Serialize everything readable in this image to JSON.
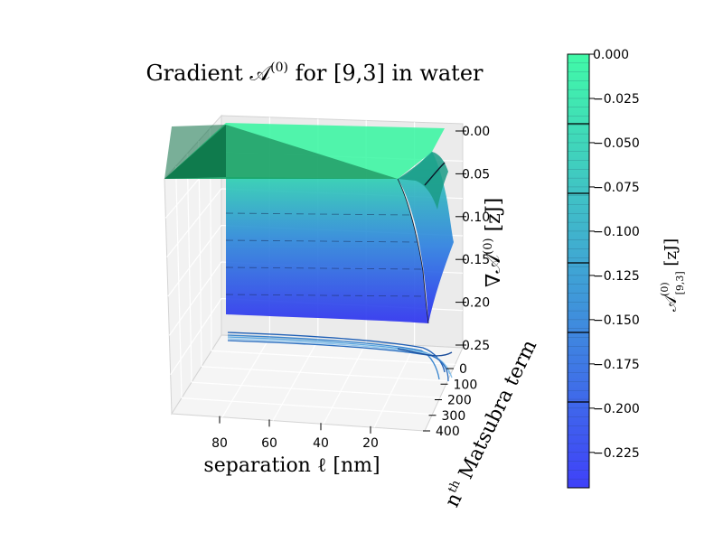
{
  "chart_data": {
    "type": "surface3d",
    "title": "Gradient 𝒜⁽⁰⁾  for [9,3] in water",
    "title_parts": {
      "main": "Gradient 𝒜",
      "sup": "(0)",
      "rest": "  for [9,3] in water"
    },
    "xlabel": {
      "main": "separation  ℓ  [nm]"
    },
    "ylabel": {
      "main": "n",
      "sup": "th",
      "rest": " Matsubra term"
    },
    "zlabel": {
      "main": "∇𝒜",
      "sup": "(0)",
      "rest": "  [zJ]"
    },
    "x_ticks": [
      "80",
      "60",
      "40",
      "20"
    ],
    "y_ticks": [
      "0",
      "100",
      "200",
      "300",
      "400"
    ],
    "z_ticks": [
      "0.00",
      "0.05",
      "0.10",
      "0.15",
      "0.20",
      "0.25"
    ],
    "xlim": [
      0,
      100
    ],
    "ylim": [
      0,
      400
    ],
    "zlim": [
      -0.25,
      0.0
    ],
    "colormap": {
      "low": "#2233ff",
      "high": "#2aff9c",
      "alpha": 0.85
    },
    "surface_description_values": {
      "plateau_value": 0.0,
      "min_value": -0.24
    },
    "colorbar": {
      "label": {
        "main": "𝒜",
        "sup": "(0)",
        "sub": "[9,3]",
        "rest": "  [zJ]"
      },
      "ticks": [
        "0.000",
        "−0.025",
        "−0.050",
        "−0.075",
        "−0.100",
        "−0.125",
        "−0.150",
        "−0.175",
        "−0.200",
        "−0.225"
      ],
      "range": [
        -0.245,
        0.0
      ]
    },
    "grid": true
  }
}
